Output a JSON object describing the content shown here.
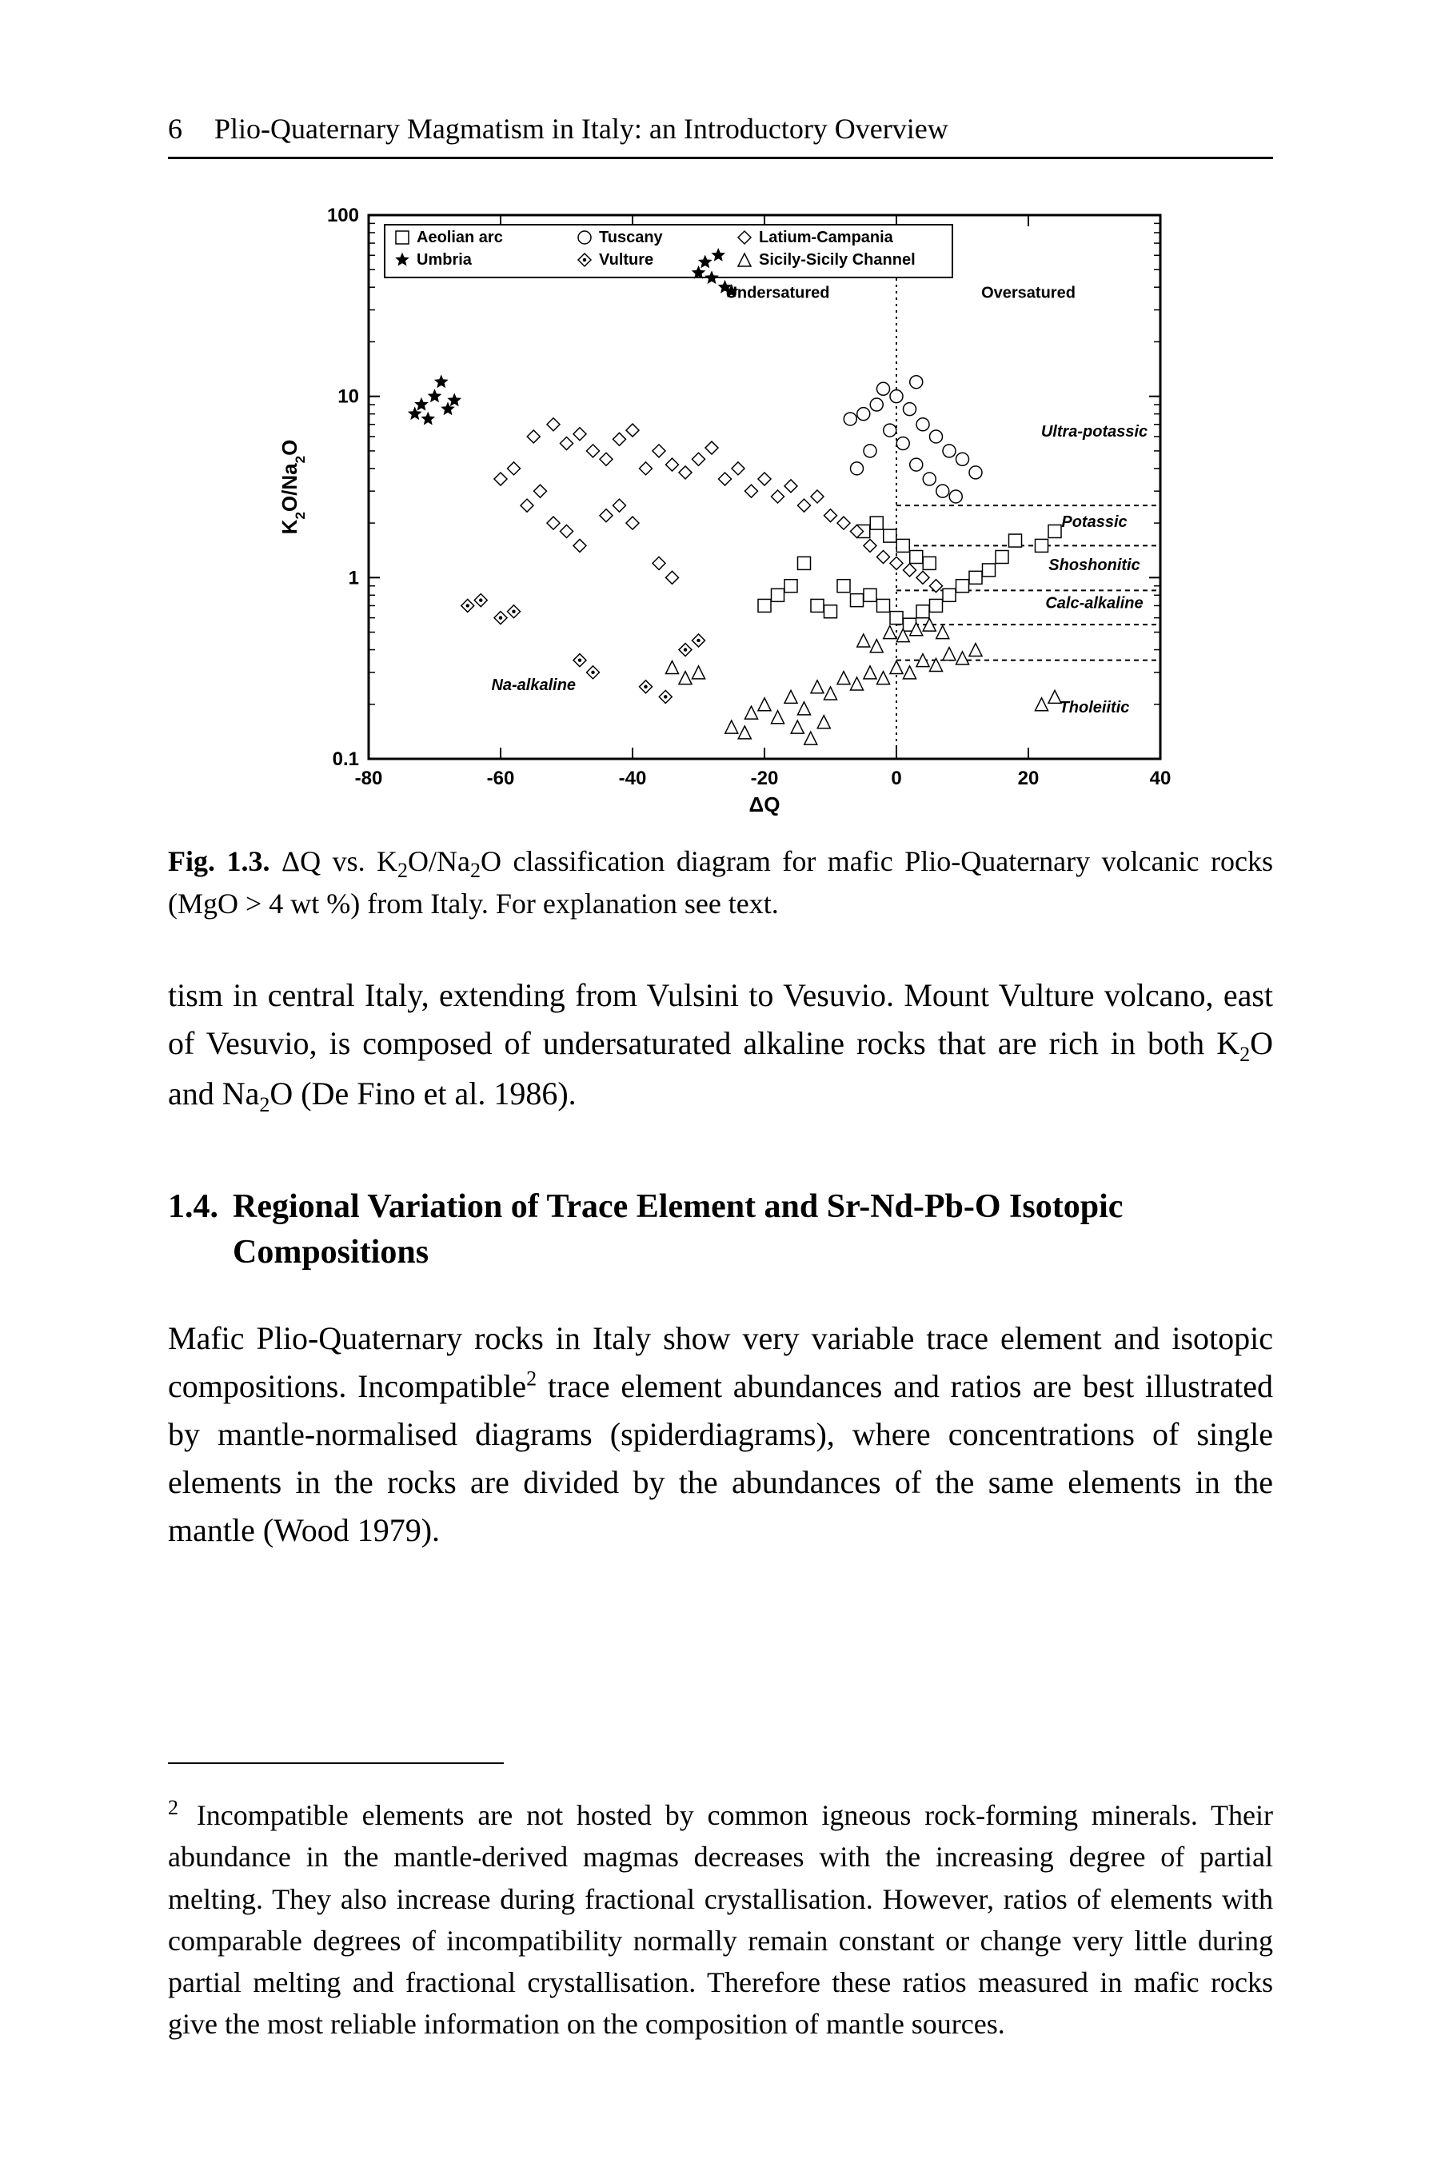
{
  "header": {
    "page_number": "6",
    "running_title": "Plio-Quaternary Magmatism in Italy: an Introductory Overview"
  },
  "figure": {
    "type": "scatter",
    "xlabel": "ΔQ",
    "ylabel_html": "K₂O/Na₂O",
    "xlim": [
      -80,
      40
    ],
    "ylim": [
      0.1,
      100
    ],
    "yscale": "log",
    "xtick_step": 20,
    "xticks": [
      -80,
      -60,
      -40,
      -20,
      0,
      20,
      40
    ],
    "ytick_labels": [
      "0.1",
      "1",
      "10",
      "100"
    ],
    "legend": [
      {
        "symbol": "open-square",
        "label": "Aeolian arc"
      },
      {
        "symbol": "open-circle",
        "label": "Tuscany"
      },
      {
        "symbol": "open-diamond",
        "label": "Latium-Campania"
      },
      {
        "symbol": "filled-star",
        "label": "Umbria"
      },
      {
        "symbol": "dot-diamond",
        "label": "Vulture"
      },
      {
        "symbol": "open-triangle",
        "label": "Sicily-Sicily Channel"
      }
    ],
    "region_labels": {
      "undersatured": "Undersatured",
      "oversatured": "Oversatured",
      "ultra_potassic": "Ultra-potassic",
      "potassic": "Potassic",
      "shoshonitic": "Shoshonitic",
      "calc_alkaline": "Calc-alkaline",
      "tholeiitic": "Tholeiitic",
      "na_alkaline": "Na-alkaline"
    },
    "horizontal_dividers_y": [
      2.5,
      1.5,
      0.85,
      0.55,
      0.35
    ],
    "vertical_saturation_x": 0,
    "colors": {
      "plot_bg": "#ffffff",
      "axis": "#000000",
      "divider": "#000000",
      "marker_stroke": "#000000",
      "marker_fill": "#ffffff",
      "filled_marker": "#000000",
      "label_text": "#000000"
    },
    "stroke_width": {
      "axis": 3,
      "divider": 2,
      "marker": 1.5
    },
    "font": {
      "legend_pt": 20,
      "tick_pt": 24,
      "axis_label_pt": 26,
      "region_pt": 20
    },
    "series": {
      "Aeolian arc": {
        "marker": "open-square",
        "points": [
          [
            -12,
            0.7
          ],
          [
            -10,
            0.65
          ],
          [
            -8,
            0.9
          ],
          [
            -6,
            0.75
          ],
          [
            -4,
            0.8
          ],
          [
            -2,
            0.7
          ],
          [
            0,
            0.6
          ],
          [
            2,
            0.55
          ],
          [
            4,
            0.65
          ],
          [
            6,
            0.7
          ],
          [
            8,
            0.8
          ],
          [
            10,
            0.9
          ],
          [
            12,
            1.0
          ],
          [
            14,
            1.1
          ],
          [
            16,
            1.3
          ],
          [
            18,
            1.6
          ],
          [
            -5,
            1.8
          ],
          [
            -3,
            2.0
          ],
          [
            -1,
            1.7
          ],
          [
            1,
            1.5
          ],
          [
            3,
            1.3
          ],
          [
            5,
            1.2
          ],
          [
            22,
            1.5
          ],
          [
            24,
            1.8
          ],
          [
            -14,
            1.2
          ],
          [
            -16,
            0.9
          ],
          [
            -18,
            0.8
          ],
          [
            -20,
            0.7
          ]
        ]
      },
      "Tuscany": {
        "marker": "open-circle",
        "points": [
          [
            -5,
            8
          ],
          [
            -3,
            9
          ],
          [
            0,
            10
          ],
          [
            2,
            8.5
          ],
          [
            4,
            7
          ],
          [
            6,
            6
          ],
          [
            3,
            12
          ],
          [
            -2,
            11
          ],
          [
            -1,
            6.5
          ],
          [
            1,
            5.5
          ],
          [
            8,
            5
          ],
          [
            10,
            4.5
          ],
          [
            12,
            3.8
          ],
          [
            -7,
            7.5
          ],
          [
            -4,
            5
          ],
          [
            -6,
            4
          ],
          [
            3,
            4.2
          ],
          [
            5,
            3.5
          ],
          [
            7,
            3
          ],
          [
            9,
            2.8
          ]
        ]
      },
      "Latium-Campania": {
        "marker": "open-diamond",
        "points": [
          [
            -55,
            6
          ],
          [
            -52,
            7
          ],
          [
            -50,
            5.5
          ],
          [
            -48,
            6.2
          ],
          [
            -46,
            5
          ],
          [
            -44,
            4.5
          ],
          [
            -42,
            5.8
          ],
          [
            -40,
            6.5
          ],
          [
            -38,
            4
          ],
          [
            -36,
            5
          ],
          [
            -34,
            4.2
          ],
          [
            -32,
            3.8
          ],
          [
            -30,
            4.5
          ],
          [
            -28,
            5.2
          ],
          [
            -26,
            3.5
          ],
          [
            -24,
            4
          ],
          [
            -22,
            3
          ],
          [
            -20,
            3.5
          ],
          [
            -18,
            2.8
          ],
          [
            -16,
            3.2
          ],
          [
            -14,
            2.5
          ],
          [
            -12,
            2.8
          ],
          [
            -10,
            2.2
          ],
          [
            -60,
            3.5
          ],
          [
            -58,
            4
          ],
          [
            -50,
            1.8
          ],
          [
            -48,
            1.5
          ],
          [
            -36,
            1.2
          ],
          [
            -34,
            1.0
          ],
          [
            -8,
            2
          ],
          [
            -6,
            1.8
          ],
          [
            -4,
            1.5
          ],
          [
            -2,
            1.3
          ],
          [
            0,
            1.2
          ],
          [
            2,
            1.1
          ],
          [
            4,
            1.0
          ],
          [
            6,
            0.9
          ],
          [
            -56,
            2.5
          ],
          [
            -54,
            3
          ],
          [
            -52,
            2
          ],
          [
            -44,
            2.2
          ],
          [
            -42,
            2.5
          ],
          [
            -40,
            2
          ]
        ]
      },
      "Umbria": {
        "marker": "filled-star",
        "points": [
          [
            -72,
            9
          ],
          [
            -70,
            10
          ],
          [
            -68,
            8.5
          ],
          [
            -69,
            12
          ],
          [
            -71,
            7.5
          ],
          [
            -73,
            8
          ],
          [
            -67,
            9.5
          ],
          [
            -28,
            45
          ],
          [
            -26,
            40
          ],
          [
            -29,
            55
          ],
          [
            -27,
            60
          ],
          [
            -25,
            38
          ],
          [
            -30,
            48
          ]
        ]
      },
      "Vulture": {
        "marker": "dot-diamond",
        "points": [
          [
            -65,
            0.7
          ],
          [
            -63,
            0.75
          ],
          [
            -60,
            0.6
          ],
          [
            -58,
            0.65
          ],
          [
            -48,
            0.35
          ],
          [
            -46,
            0.3
          ],
          [
            -38,
            0.25
          ],
          [
            -35,
            0.22
          ],
          [
            -32,
            0.4
          ],
          [
            -30,
            0.45
          ]
        ]
      },
      "Sicily-Sicily Channel": {
        "marker": "open-triangle",
        "points": [
          [
            -22,
            0.18
          ],
          [
            -20,
            0.2
          ],
          [
            -18,
            0.17
          ],
          [
            -16,
            0.22
          ],
          [
            -14,
            0.19
          ],
          [
            -12,
            0.25
          ],
          [
            -10,
            0.23
          ],
          [
            -8,
            0.28
          ],
          [
            -6,
            0.26
          ],
          [
            -4,
            0.3
          ],
          [
            -2,
            0.28
          ],
          [
            0,
            0.32
          ],
          [
            2,
            0.3
          ],
          [
            4,
            0.35
          ],
          [
            6,
            0.33
          ],
          [
            8,
            0.38
          ],
          [
            10,
            0.36
          ],
          [
            12,
            0.4
          ],
          [
            -15,
            0.15
          ],
          [
            -13,
            0.13
          ],
          [
            -11,
            0.16
          ],
          [
            22,
            0.2
          ],
          [
            24,
            0.22
          ],
          [
            -30,
            0.3
          ],
          [
            -32,
            0.28
          ],
          [
            -34,
            0.32
          ],
          [
            -25,
            0.15
          ],
          [
            -23,
            0.14
          ],
          [
            -5,
            0.45
          ],
          [
            -3,
            0.42
          ],
          [
            -1,
            0.5
          ],
          [
            1,
            0.48
          ],
          [
            3,
            0.52
          ],
          [
            5,
            0.55
          ],
          [
            7,
            0.5
          ]
        ]
      }
    }
  },
  "caption_lead": "Fig. 1.3.",
  "caption_text_a": " ΔQ vs. K",
  "caption_text_b": "O/Na",
  "caption_text_c": "O classification diagram for mafic Plio-Quaternary volcanic rocks (MgO > 4 wt %) from Italy. For explanation see text.",
  "body_para_a": "tism in central Italy, extending from Vulsini to Vesuvio. Mount Vulture volcano, east of Vesuvio, is composed of undersaturated alkaline rocks that are rich in both K",
  "body_para_b": "O and Na",
  "body_para_c": "O (De Fino et al. 1986).",
  "section": {
    "number": "1.4.",
    "title": "Regional Variation of Trace Element and Sr-Nd-Pb-O Isotopic Compositions"
  },
  "body_para2_a": "Mafic Plio-Quaternary rocks in Italy show very variable trace element and isotopic compositions. Incompatible",
  "body_para2_sup": "2",
  "body_para2_b": " trace element abundances and ratios are best illustrated by mantle-normalised diagrams (spiderdiagrams), where concentrations of single elements in the rocks are divided by the abundances of the same elements in the mantle (Wood 1979).",
  "footnote": {
    "mark": "2",
    "text": " Incompatible elements are not hosted by common igneous rock-forming minerals. Their abundance in the mantle-derived magmas decreases with the increasing degree of partial melting. They also increase during fractional crystallisation. However, ratios of elements with comparable degrees of incompatibility normally remain constant or change very little during partial melting and fractional crystallisation. Therefore these ratios measured in mafic rocks give the most reliable information on the composition of mantle sources."
  }
}
